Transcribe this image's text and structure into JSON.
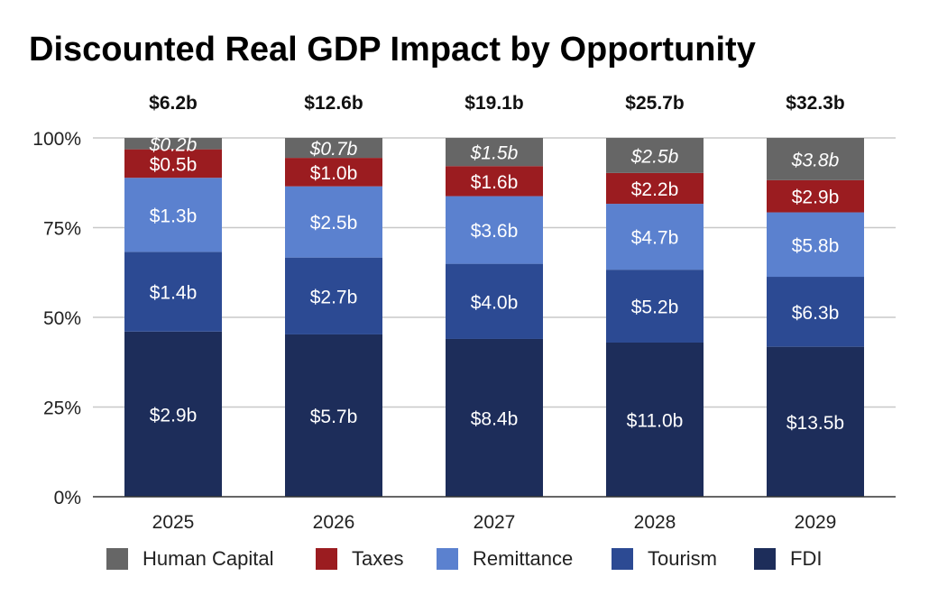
{
  "chart_data": {
    "type": "bar",
    "stacked": "percent",
    "title": "Discounted Real GDP Impact by Opportunity",
    "categories": [
      "2025",
      "2026",
      "2027",
      "2028",
      "2029"
    ],
    "totals": [
      "$6.2b",
      "$12.6b",
      "$19.1b",
      "$25.7b",
      "$32.3b"
    ],
    "y_ticks": [
      "0%",
      "25%",
      "50%",
      "75%",
      "100%"
    ],
    "ylim": [
      0,
      100
    ],
    "grid": true,
    "legend_position": "bottom",
    "series": [
      {
        "name": "FDI",
        "color": "#1d2d5a",
        "values": [
          2.9,
          5.7,
          8.4,
          11.0,
          13.5
        ],
        "labels": [
          "$2.9b",
          "$5.7b",
          "$8.4b",
          "$11.0b",
          "$13.5b"
        ],
        "label_style": "normal"
      },
      {
        "name": "Tourism",
        "color": "#2c4a93",
        "values": [
          1.4,
          2.7,
          4.0,
          5.2,
          6.3
        ],
        "labels": [
          "$1.4b",
          "$2.7b",
          "$4.0b",
          "$5.2b",
          "$6.3b"
        ],
        "label_style": "normal"
      },
      {
        "name": "Remittance",
        "color": "#5b81cf",
        "values": [
          1.3,
          2.5,
          3.6,
          4.7,
          5.8
        ],
        "labels": [
          "$1.3b",
          "$2.5b",
          "$3.6b",
          "$4.7b",
          "$5.8b"
        ],
        "label_style": "normal"
      },
      {
        "name": "Taxes",
        "color": "#9b1c20",
        "values": [
          0.5,
          1.0,
          1.6,
          2.2,
          2.9
        ],
        "labels": [
          "$0.5b",
          "$1.0b",
          "$1.6b",
          "$2.2b",
          "$2.9b"
        ],
        "label_style": "normal"
      },
      {
        "name": "Human Capital",
        "color": "#666666",
        "values": [
          0.2,
          0.7,
          1.5,
          2.5,
          3.8
        ],
        "labels": [
          "$0.2b",
          "$0.7b",
          "$1.5b",
          "$2.5b",
          "$3.8b"
        ],
        "label_style": "italic"
      }
    ],
    "legend_order": [
      "Human Capital",
      "Taxes",
      "Remittance",
      "Tourism",
      "FDI"
    ]
  }
}
